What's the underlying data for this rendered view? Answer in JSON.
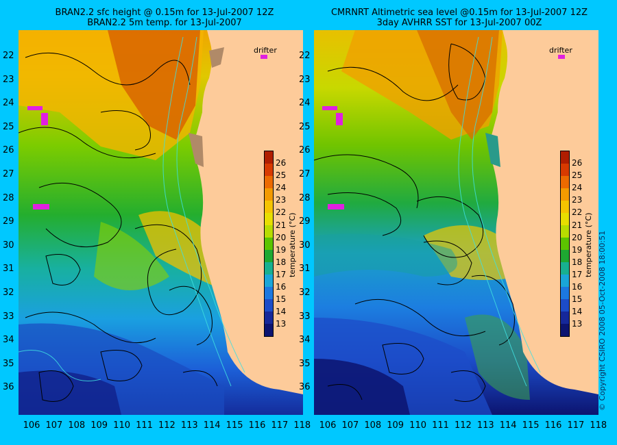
{
  "left_panel": {
    "title_line1": "BRAN2.2 sfc height @ 0.15m for 13-Jul-2007 12Z",
    "title_line2": "BRAN2.2 5m temp. for 13-Jul-2007",
    "drifter_label": "drifter"
  },
  "right_panel": {
    "title_line1": "CMRNRT Altimetric sea level  @0.15m  for 13-Jul-2007 12Z",
    "title_line2": "3day AVHRR SST for 13-Jul-2007 00Z",
    "drifter_label": "drifter"
  },
  "latitude_ticks": [
    "22",
    "23",
    "24",
    "25",
    "26",
    "27",
    "28",
    "29",
    "30",
    "31",
    "32",
    "33",
    "34",
    "35",
    "36"
  ],
  "longitude_ticks": [
    "106",
    "107",
    "108",
    "109",
    "110",
    "111",
    "112",
    "113",
    "114",
    "115",
    "116",
    "117",
    "118"
  ],
  "colorbar": {
    "ticks": [
      "26",
      "25",
      "24",
      "23",
      "22",
      "21",
      "20",
      "19",
      "18",
      "17",
      "16",
      "15",
      "14",
      "13"
    ],
    "axis_label": "temperature (°C)",
    "colors": [
      "#b01e00",
      "#d83a00",
      "#ec6a00",
      "#f39a00",
      "#f5c400",
      "#e8de00",
      "#b8dc00",
      "#5cc400",
      "#1ea832",
      "#18b090",
      "#1aa6d8",
      "#1c78e0",
      "#1c4cc8",
      "#16289a",
      "#0c1470"
    ]
  },
  "copyright": "© Copyright CSIRO 2008    05-Oct-2008 18:00:51",
  "colors": {
    "background": "#00c8ff",
    "land": "#fdcb9a",
    "drifter": "#e020e0"
  }
}
